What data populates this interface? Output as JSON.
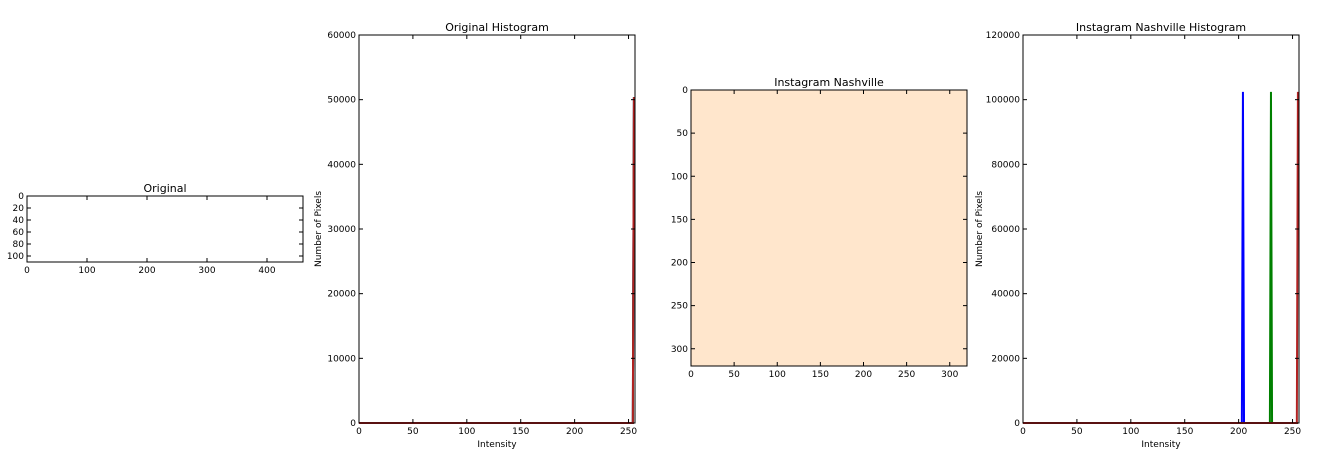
{
  "chart_data": [
    {
      "type": "image",
      "title": "Original",
      "xlabel": "",
      "ylabel": "",
      "xlim": [
        0,
        460
      ],
      "ylim": [
        110,
        0
      ],
      "xticks": [
        0,
        100,
        200,
        300,
        400
      ],
      "yticks": [
        0,
        20,
        40,
        60,
        80,
        100
      ],
      "image_color": "#ffffff"
    },
    {
      "type": "line",
      "title": "Original Histogram",
      "xlabel": "Intensity",
      "ylabel": "Number of Pixels",
      "xlim": [
        0,
        256
      ],
      "ylim": [
        0,
        60000
      ],
      "xticks": [
        0,
        50,
        100,
        150,
        200,
        250
      ],
      "yticks": [
        0,
        10000,
        20000,
        30000,
        40000,
        50000,
        60000
      ],
      "series": [
        {
          "color": "#0000ff",
          "spike_x": 255,
          "spike_y": 50400
        },
        {
          "color": "#008000",
          "spike_x": 255,
          "spike_y": 50400
        },
        {
          "color": "#b22222",
          "spike_x": 255,
          "spike_y": 50400
        }
      ]
    },
    {
      "type": "image",
      "title": "Instagram Nashville",
      "xlabel": "",
      "ylabel": "",
      "xlim": [
        0,
        320
      ],
      "ylim": [
        320,
        0
      ],
      "xticks": [
        0,
        50,
        100,
        150,
        200,
        250,
        300
      ],
      "yticks": [
        0,
        50,
        100,
        150,
        200,
        250,
        300
      ],
      "image_color": "#ffe6cc"
    },
    {
      "type": "line",
      "title": "Instagram Nashville Histogram",
      "xlabel": "Intensity",
      "ylabel": "Number of Pixels",
      "xlim": [
        0,
        256
      ],
      "ylim": [
        0,
        120000
      ],
      "xticks": [
        0,
        50,
        100,
        150,
        200,
        250
      ],
      "yticks": [
        0,
        20000,
        40000,
        60000,
        80000,
        100000,
        120000
      ],
      "series": [
        {
          "color": "#0000ff",
          "spike_x": 204,
          "spike_y": 102400
        },
        {
          "color": "#008000",
          "spike_x": 230,
          "spike_y": 102400
        },
        {
          "color": "#b22222",
          "spike_x": 255,
          "spike_y": 102400
        }
      ]
    }
  ]
}
